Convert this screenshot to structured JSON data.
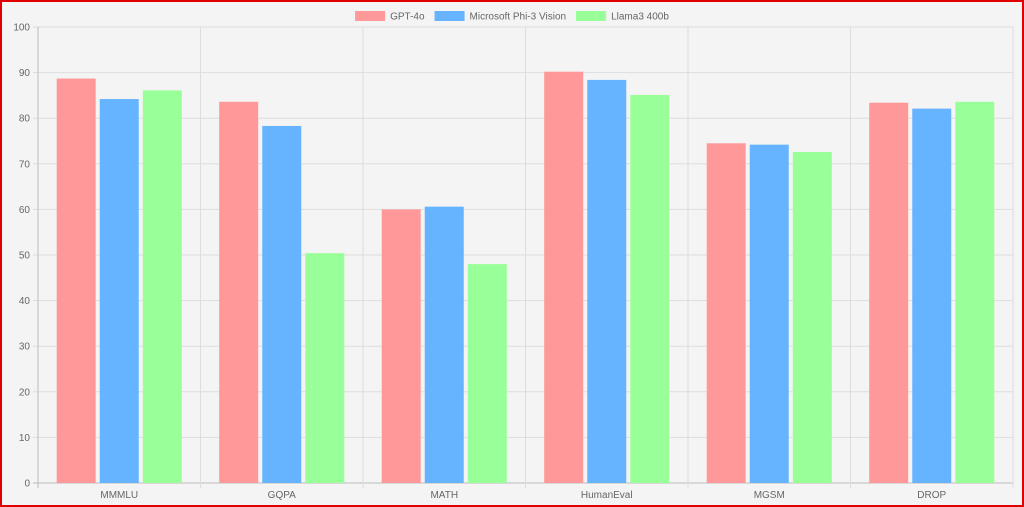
{
  "chart_data": {
    "type": "bar",
    "categories": [
      "MMMLU",
      "GQPA",
      "MATH",
      "HumanEval",
      "MGSM",
      "DROP"
    ],
    "series": [
      {
        "name": "GPT-4o",
        "color": "#ff9999",
        "values": [
          88.7,
          83.6,
          60.0,
          90.2,
          74.5,
          83.4
        ]
      },
      {
        "name": "Microsoft Phi-3 Vision",
        "color": "#66b3ff",
        "values": [
          84.2,
          78.3,
          60.6,
          88.4,
          74.2,
          82.1
        ]
      },
      {
        "name": "Llama3 400b",
        "color": "#99ff99",
        "values": [
          86.1,
          50.4,
          48.0,
          85.1,
          72.6,
          83.6
        ]
      }
    ],
    "yticks": [
      0,
      10,
      20,
      30,
      40,
      50,
      60,
      70,
      80,
      90,
      100
    ],
    "ylim": [
      0,
      100
    ],
    "title": "",
    "xlabel": "",
    "ylabel": "",
    "grid": true,
    "legend_position": "top-center"
  }
}
